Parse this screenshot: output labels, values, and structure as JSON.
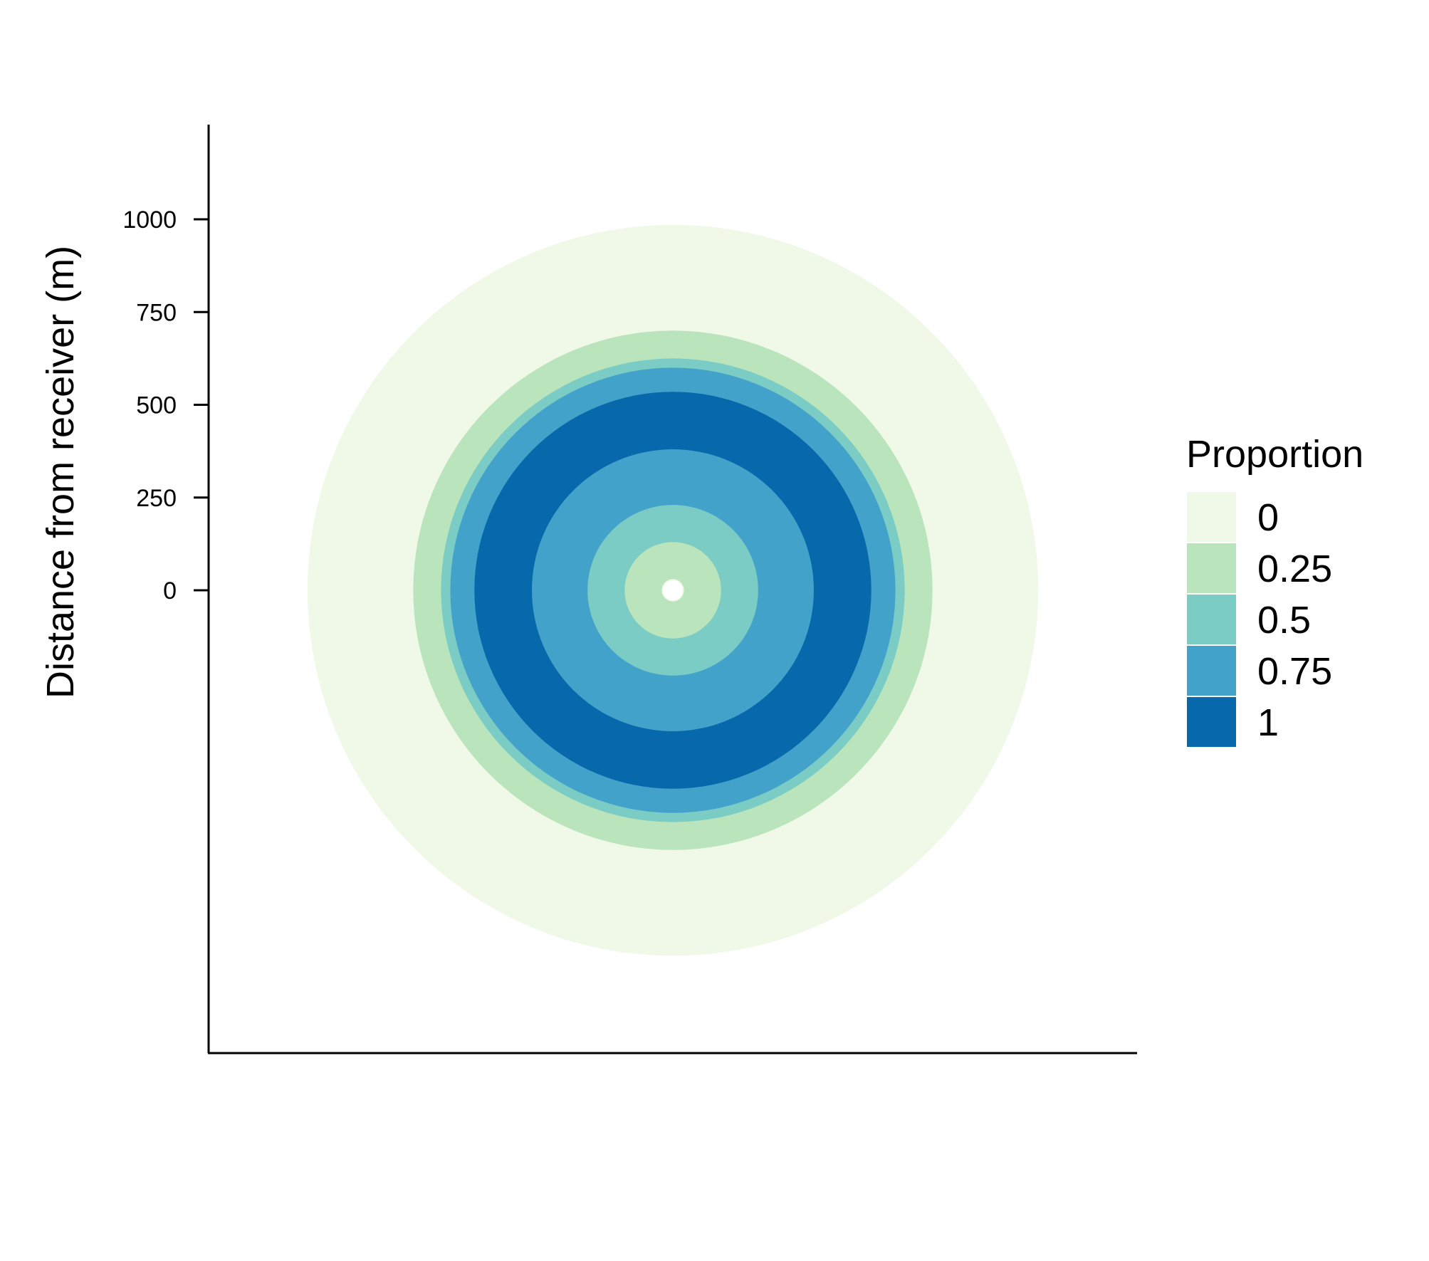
{
  "chart_data": {
    "type": "heatmap",
    "title": "",
    "ylabel": "Distance from receiver (m)",
    "xlabel": "",
    "y_ticks": [
      0,
      250,
      500,
      750,
      1000
    ],
    "y_tick_labels": [
      "0",
      "250",
      "500",
      "750",
      "1000"
    ],
    "ylim": [
      -1250,
      1250
    ],
    "xlim": [
      -1250,
      1250
    ],
    "grid": false,
    "legend": {
      "title": "Proportion",
      "position": "right",
      "entries": [
        {
          "label": "0",
          "value": 0,
          "color": "#f0f9e8"
        },
        {
          "label": "0.25",
          "value": 0.25,
          "color": "#bae4bc"
        },
        {
          "label": "0.5",
          "value": 0.5,
          "color": "#7bccc4"
        },
        {
          "label": "0.75",
          "value": 0.75,
          "color": "#43a2ca"
        },
        {
          "label": "1",
          "value": 1,
          "color": "#0868ac"
        }
      ]
    },
    "rings": [
      {
        "from_m": 700,
        "to_m": 985,
        "value": 0
      },
      {
        "from_m": 625,
        "to_m": 700,
        "value": 0.25
      },
      {
        "from_m": 600,
        "to_m": 625,
        "value": 0.5
      },
      {
        "from_m": 535,
        "to_m": 600,
        "value": 0.75
      },
      {
        "from_m": 380,
        "to_m": 535,
        "value": 1
      },
      {
        "from_m": 230,
        "to_m": 380,
        "value": 0.75
      },
      {
        "from_m": 130,
        "to_m": 230,
        "value": 0.5
      },
      {
        "from_m": 30,
        "to_m": 130,
        "value": 0.25
      },
      {
        "from_m": 0,
        "to_m": 30,
        "value": 0
      }
    ]
  }
}
